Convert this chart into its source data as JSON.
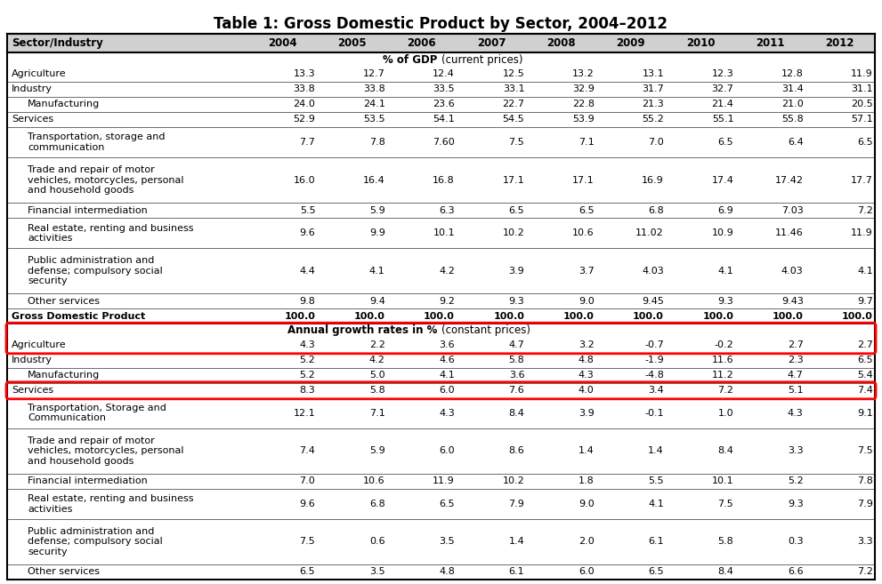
{
  "title": "Table 1: Gross Domestic Product by Sector, 2004–2012",
  "columns": [
    "Sector/Industry",
    "2004",
    "2005",
    "2006",
    "2007",
    "2008",
    "2009",
    "2010",
    "2011",
    "2012"
  ],
  "section1_header": "% of GDP (current prices)",
  "section1_rows": [
    {
      "label": "Agriculture",
      "indent": 0,
      "values": [
        "13.3",
        "12.7",
        "12.4",
        "12.5",
        "13.2",
        "13.1",
        "12.3",
        "12.8",
        "11.9"
      ]
    },
    {
      "label": "Industry",
      "indent": 0,
      "values": [
        "33.8",
        "33.8",
        "33.5",
        "33.1",
        "32.9",
        "31.7",
        "32.7",
        "31.4",
        "31.1"
      ]
    },
    {
      "label": "Manufacturing",
      "indent": 1,
      "values": [
        "24.0",
        "24.1",
        "23.6",
        "22.7",
        "22.8",
        "21.3",
        "21.4",
        "21.0",
        "20.5"
      ]
    },
    {
      "label": "Services",
      "indent": 0,
      "values": [
        "52.9",
        "53.5",
        "54.1",
        "54.5",
        "53.9",
        "55.2",
        "55.1",
        "55.8",
        "57.1"
      ]
    },
    {
      "label": "Transportation, storage and\ncommunication",
      "indent": 1,
      "values": [
        "7.7",
        "7.8",
        "7.60",
        "7.5",
        "7.1",
        "7.0",
        "6.5",
        "6.4",
        "6.5"
      ]
    },
    {
      "label": "Trade and repair of motor\nvehicles, motorcycles, personal\nand household goods",
      "indent": 1,
      "values": [
        "16.0",
        "16.4",
        "16.8",
        "17.1",
        "17.1",
        "16.9",
        "17.4",
        "17.42",
        "17.7"
      ]
    },
    {
      "label": "Financial intermediation",
      "indent": 1,
      "values": [
        "5.5",
        "5.9",
        "6.3",
        "6.5",
        "6.5",
        "6.8",
        "6.9",
        "7.03",
        "7.2"
      ]
    },
    {
      "label": "Real estate, renting and business\nactivities",
      "indent": 1,
      "values": [
        "9.6",
        "9.9",
        "10.1",
        "10.2",
        "10.6",
        "11.02",
        "10.9",
        "11.46",
        "11.9"
      ]
    },
    {
      "label": "Public administration and\ndefense; compulsory social\nsecurity",
      "indent": 1,
      "values": [
        "4.4",
        "4.1",
        "4.2",
        "3.9",
        "3.7",
        "4.03",
        "4.1",
        "4.03",
        "4.1"
      ]
    },
    {
      "label": "Other services",
      "indent": 1,
      "values": [
        "9.8",
        "9.4",
        "9.2",
        "9.3",
        "9.0",
        "9.45",
        "9.3",
        "9.43",
        "9.7"
      ]
    },
    {
      "label": "Gross Domestic Product",
      "indent": 0,
      "bold": true,
      "values": [
        "100.0",
        "100.0",
        "100.0",
        "100.0",
        "100.0",
        "100.0",
        "100.0",
        "100.0",
        "100.0"
      ]
    }
  ],
  "section2_header": "Annual growth rates in % (constant prices)",
  "section2_rows": [
    {
      "label": "Agriculture",
      "indent": 0,
      "highlight_agri": true,
      "values": [
        "4.3",
        "2.2",
        "3.6",
        "4.7",
        "3.2",
        "-0.7",
        "-0.2",
        "2.7",
        "2.7"
      ]
    },
    {
      "label": "Industry",
      "indent": 0,
      "values": [
        "5.2",
        "4.2",
        "4.6",
        "5.8",
        "4.8",
        "-1.9",
        "11.6",
        "2.3",
        "6.5"
      ]
    },
    {
      "label": "Manufacturing",
      "indent": 1,
      "values": [
        "5.2",
        "5.0",
        "4.1",
        "3.6",
        "4.3",
        "-4.8",
        "11.2",
        "4.7",
        "5.4"
      ]
    },
    {
      "label": "Services",
      "indent": 0,
      "highlight_svc": true,
      "values": [
        "8.3",
        "5.8",
        "6.0",
        "7.6",
        "4.0",
        "3.4",
        "7.2",
        "5.1",
        "7.4"
      ]
    },
    {
      "label": "Transportation, Storage and\nCommunication",
      "indent": 1,
      "values": [
        "12.1",
        "7.1",
        "4.3",
        "8.4",
        "3.9",
        "-0.1",
        "1.0",
        "4.3",
        "9.1"
      ]
    },
    {
      "label": "Trade and repair of motor\nvehicles, motorcycles, personal\nand household goods",
      "indent": 1,
      "values": [
        "7.4",
        "5.9",
        "6.0",
        "8.6",
        "1.4",
        "1.4",
        "8.4",
        "3.3",
        "7.5"
      ]
    },
    {
      "label": "Financial intermediation",
      "indent": 1,
      "values": [
        "7.0",
        "10.6",
        "11.9",
        "10.2",
        "1.8",
        "5.5",
        "10.1",
        "5.2",
        "7.8"
      ]
    },
    {
      "label": "Real estate, renting and business\nactivities",
      "indent": 1,
      "values": [
        "9.6",
        "6.8",
        "6.5",
        "7.9",
        "9.0",
        "4.1",
        "7.5",
        "9.3",
        "7.9"
      ]
    },
    {
      "label": "Public administration and\ndefense; compulsory social\nsecurity",
      "indent": 1,
      "values": [
        "7.5",
        "0.6",
        "3.5",
        "1.4",
        "2.0",
        "6.1",
        "5.8",
        "0.3",
        "3.3"
      ]
    },
    {
      "label": "Other services",
      "indent": 1,
      "values": [
        "6.5",
        "3.5",
        "4.8",
        "6.1",
        "6.0",
        "6.5",
        "8.4",
        "6.6",
        "7.2"
      ]
    }
  ],
  "bg_color": "#ffffff",
  "header_bg": "#d0d0d0",
  "border_color": "#000000",
  "text_color": "#000000",
  "title_fontsize": 12,
  "header_fontsize": 8.5,
  "data_fontsize": 8.0
}
